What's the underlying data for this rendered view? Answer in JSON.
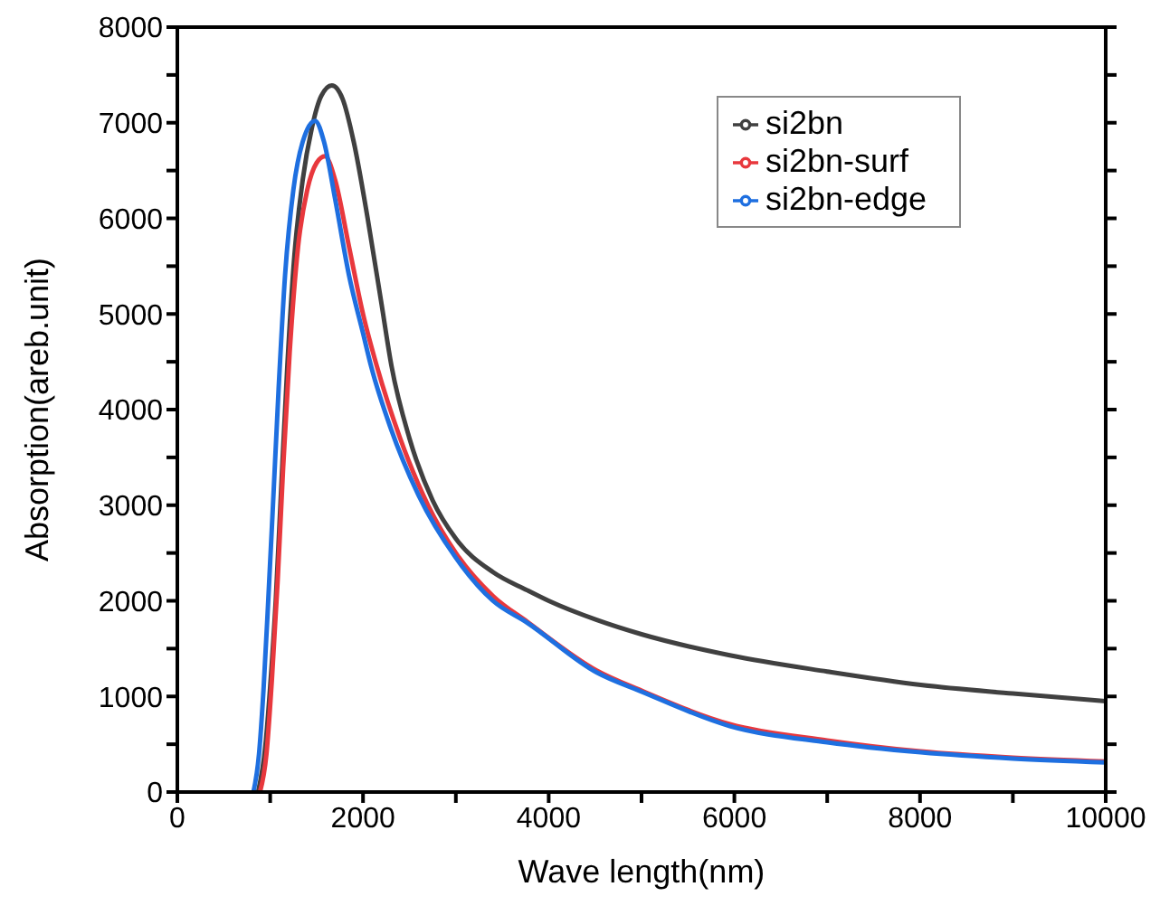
{
  "chart_data": {
    "type": "line",
    "xlabel": "Wave length(nm)",
    "ylabel": "Absorption(areb.unit)",
    "xlim": [
      0,
      10000
    ],
    "ylim": [
      0,
      8000
    ],
    "xticks": [
      0,
      {
        "value": 1000,
        "label": null
      },
      2000,
      {
        "value": 3000,
        "label": null
      },
      4000,
      {
        "value": 5000,
        "label": null
      },
      6000,
      {
        "value": 7000,
        "label": null
      },
      8000,
      {
        "value": 9000,
        "label": null
      },
      10000
    ],
    "yticks": [
      0,
      {
        "value": 500,
        "label": null
      },
      1000,
      {
        "value": 1500,
        "label": null
      },
      2000,
      {
        "value": 2500,
        "label": null
      },
      3000,
      {
        "value": 3500,
        "label": null
      },
      4000,
      {
        "value": 4500,
        "label": null
      },
      5000,
      {
        "value": 5500,
        "label": null
      },
      6000,
      {
        "value": 6500,
        "label": null
      },
      7000,
      {
        "value": 7500,
        "label": null
      },
      8000
    ],
    "grid": false,
    "legend": "top right",
    "marker": "none",
    "line_style": "solid",
    "series": [
      {
        "name": "si2bn",
        "color": "#404040",
        "x": [
          870,
          950,
          1000,
          1060,
          1120,
          1185,
          1260,
          1350,
          1450,
          1550,
          1664,
          1780,
          1900,
          2050,
          2200,
          2306,
          2500,
          2750,
          3000,
          3400,
          3770,
          4000,
          4518,
          5000,
          5951,
          7000,
          8007,
          9000,
          10000
        ],
        "values": [
          0,
          500,
          1100,
          2000,
          3200,
          4460,
          5600,
          6400,
          6950,
          7280,
          7390,
          7250,
          6800,
          6000,
          5100,
          4460,
          3700,
          3050,
          2650,
          2300,
          2110,
          2000,
          1800,
          1650,
          1430,
          1260,
          1120,
          1030,
          950
        ]
      },
      {
        "name": "si2bn-surf",
        "color": "#e8383d",
        "x": [
          890,
          960,
          1020,
          1080,
          1140,
          1210,
          1300,
          1400,
          1500,
          1590,
          1700,
          1850,
          2000,
          2150,
          2400,
          2700,
          3000,
          3400,
          3770,
          4518,
          5000,
          5951,
          7000,
          8007,
          9000,
          10000
        ],
        "values": [
          0,
          400,
          1200,
          2200,
          3400,
          4600,
          5700,
          6300,
          6580,
          6650,
          6400,
          5700,
          5000,
          4450,
          3700,
          3000,
          2500,
          2050,
          1780,
          1270,
          1060,
          710,
          540,
          425,
          360,
          320
        ]
      },
      {
        "name": "si2bn-edge",
        "color": "#1e6fe0",
        "x": [
          820,
          880,
          930,
          979,
          1030,
          1090,
          1160,
          1250,
          1350,
          1484,
          1580,
          1700,
          1850,
          2000,
          2088,
          2300,
          2600,
          3000,
          3400,
          3770,
          4518,
          5000,
          5951,
          7000,
          8007,
          9000,
          10000
        ],
        "values": [
          0,
          400,
          1100,
          2000,
          3000,
          4200,
          5400,
          6300,
          6800,
          7020,
          6800,
          6200,
          5400,
          4800,
          4450,
          3800,
          3100,
          2450,
          2000,
          1770,
          1250,
          1050,
          690,
          520,
          415,
          350,
          310
        ]
      }
    ]
  }
}
